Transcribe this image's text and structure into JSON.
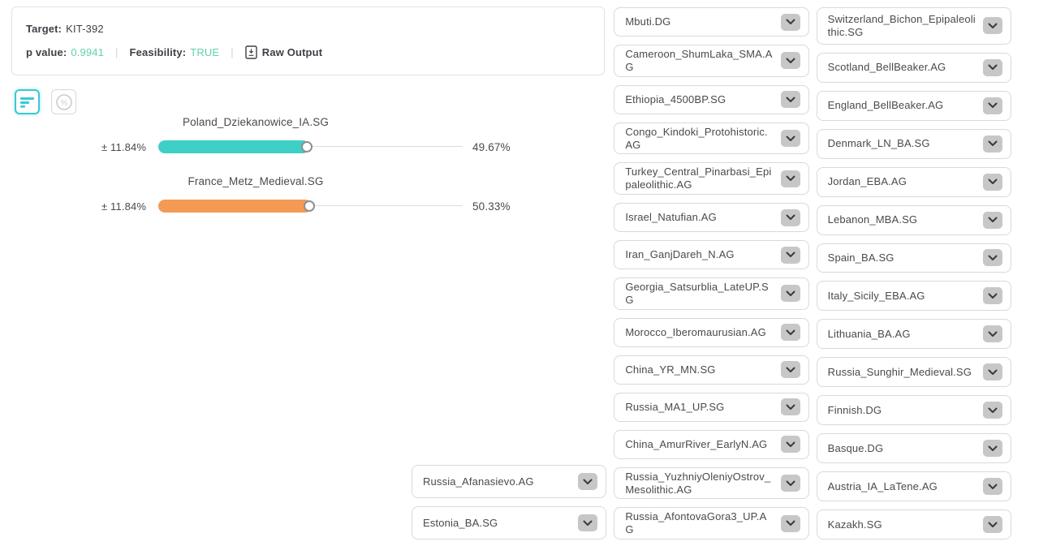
{
  "colors": {
    "accent_teal": "#3bc9d3",
    "success_green": "#5fd3a8",
    "slider_teal": "#3ed0c6",
    "slider_orange": "#f49a55"
  },
  "result_card": {
    "target_label": "Target:",
    "target_value": "KIT-392",
    "p_value_label": "p value:",
    "p_value": "0.9941",
    "divider": "|",
    "feasibility_label": "Feasibility:",
    "feasibility_value": "TRUE",
    "raw_output_label": "Raw Output"
  },
  "view_toggles": {
    "bars_view_active": true,
    "percent_view_active": false
  },
  "sliders": [
    {
      "label": "Poland_Dziekanowice_IA.SG",
      "error_margin": "± 11.84%",
      "value": 49.67,
      "value_label": "49.67%",
      "color": "#3ed0c6"
    },
    {
      "label": "France_Metz_Medieval.SG",
      "error_margin": "± 11.84%",
      "value": 50.33,
      "value_label": "50.33%",
      "color": "#f49a55"
    }
  ],
  "populations": {
    "overflow_column": [
      "Russia_Afanasievo.AG",
      "Estonia_BA.SG"
    ],
    "column_1": [
      "Mbuti.DG",
      "Cameroon_ShumLaka_SMA.AG",
      "Ethiopia_4500BP.SG",
      "Congo_Kindoki_Protohistoric.AG",
      "Turkey_Central_Pinarbasi_Epipaleolithic.AG",
      "Israel_Natufian.AG",
      "Iran_GanjDareh_N.AG",
      "Georgia_Satsurblia_LateUP.SG",
      "Morocco_Iberomaurusian.AG",
      "China_YR_MN.SG",
      "Russia_MA1_UP.SG",
      "China_AmurRiver_EarlyN.AG",
      "Russia_YuzhniyOleniyOstrov_Mesolithic.AG",
      "Russia_AfontovaGora3_UP.AG"
    ],
    "column_2": [
      "Switzerland_Bichon_Epipaleolithic.SG",
      "Scotland_BellBeaker.AG",
      "England_BellBeaker.AG",
      "Denmark_LN_BA.SG",
      "Jordan_EBA.AG",
      "Lebanon_MBA.SG",
      "Spain_BA.SG",
      "Italy_Sicily_EBA.AG",
      "Lithuania_BA.AG",
      "Russia_Sunghir_Medieval.SG",
      "Finnish.DG",
      "Basque.DG",
      "Austria_IA_LaTene.AG",
      "Kazakh.SG"
    ]
  }
}
